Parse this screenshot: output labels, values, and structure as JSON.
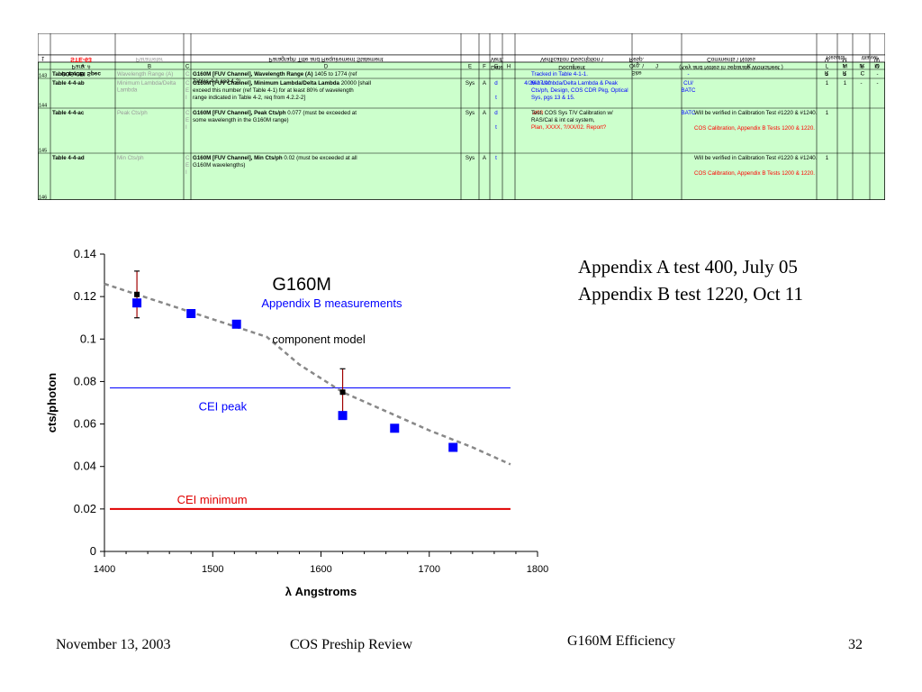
{
  "table": {
    "header": {
      "col1": [
        "COS CEI Spec",
        "Para. #",
        "STE-63"
      ],
      "parameter": "Parameter",
      "paragraph": "Paragraph Title and Requirement Statement",
      "date": [
        "Date",
        "Verif."
      ],
      "document": [
        "Document",
        "Verification Description \\"
      ],
      "org": [
        "Site",
        "Org. \\",
        "Resp."
      ],
      "comments": [
        "(Key and Notes in separate Worksheet )",
        "Comments \\ Notes"
      ],
      "results": "Results",
      "waiver": "Waiver",
      "rav": [
        "R",
        "A",
        "V"
      ],
      "rrm": [
        "R",
        "R",
        "M"
      ],
      "cmw": [
        "C",
        "M",
        "W"
      ],
      "index": "1"
    },
    "letters": [
      "A",
      "B",
      "C",
      "D",
      "E",
      "F",
      "G",
      "H",
      "I",
      "J",
      "K",
      "L",
      "M",
      "N",
      "O"
    ],
    "rows": [
      {
        "num": "143",
        "id": "Table 4-4-aa",
        "param": "Wavelength Range (A)",
        "c": "C",
        "d_bold": "G160M [FUV Channel], Wavelength Range (A)",
        "d_rest": " 1405 to 1774 (ref Tables 4-1 and 4-2)",
        "e": "",
        "f": "",
        "g": "",
        "h": "-",
        "i": "Tracked in Table 4-1-1.",
        "i_red": "",
        "j": "-",
        "k": "",
        "k_red": "",
        "l": "1",
        "m": "1",
        "n": "-",
        "o": "-"
      },
      {
        "num": "144",
        "id": "Table 4-4-ab",
        "param": "Minimum Lambda/Delta Lambda",
        "c": "C E I",
        "d_bold": "G160M [FUV Channel], Minimum Lambda/Delta Lambda",
        "d_rest": " 20000 [shall exceed this number (ref Table 4-1) for at least 80% of wavelength range indicated in Table 4-2, req from 4.2.2-2]",
        "e": "Sys",
        "f": "A",
        "g": "d t",
        "h": "4/26-27/00",
        "i": "Min Lambda/Delta Lambda & Peak Cts/ph, Design, COS CDR Pkg, Optical Sys, pgs 13 & 15.",
        "i_red": "",
        "j": "CU/ BATC",
        "k": "",
        "k_red": "",
        "l": "1",
        "m": "1",
        "n": "-",
        "o": "-"
      },
      {
        "num": "145",
        "id": "Table 4-4-ac",
        "param": "Peak Cts/ph",
        "c": "C E I",
        "d_bold": "G160M [FUV Channel], Peak Cts/ph",
        "d_rest": " 0.077 (must be exceeded at some wavelength in the G160M range)",
        "e": "Sys",
        "f": "A",
        "g": "d t",
        "h": "2/03",
        "i": "Test, COS Sys T/V Calibration w/ RAS/Cal & int cal system,",
        "i_red": "Plan, XXXX, ?/XX/02. Report?",
        "j": "BATC",
        "k": "Will be verified in Calibration Test #1220 & #1240.",
        "k_red": "COS Calibration, Appendix B Tests 1200 & 1220.",
        "l": "1",
        "m": "",
        "n": "",
        "o": ""
      },
      {
        "num": "146",
        "id": "Table 4-4-ad",
        "param": "Min Cts/ph",
        "c": "C E I",
        "d_bold": "G160M [FUV Channel], Min Cts/ph",
        "d_rest": " 0.02 (must be exceeded at all G160M wavelengths)",
        "e": "Sys",
        "f": "A",
        "g": "t",
        "h": "",
        "i": "",
        "i_red": "",
        "j": "",
        "k": "Will be verified in Calibration Test #1220 & #1240.",
        "k_red": "COS Calibration, Appendix B Tests 1200 & 1220.",
        "l": "1",
        "m": "",
        "n": "",
        "o": ""
      }
    ]
  },
  "chart_data": {
    "type": "scatter",
    "title": "G160M",
    "xlabel": "λ Angstroms",
    "ylabel": "cts/photon",
    "xlim": [
      1400,
      1800
    ],
    "ylim": [
      0,
      0.14
    ],
    "xticks": [
      1400,
      1500,
      1600,
      1700,
      1800
    ],
    "yticks": [
      0,
      0.02,
      0.04,
      0.06,
      0.08,
      0.1,
      0.12,
      0.14
    ],
    "grid": false,
    "series": [
      {
        "name": "Appendix B measurements",
        "color": "#0000ff",
        "marker": "square",
        "x": [
          1430,
          1480,
          1522,
          1620,
          1668,
          1722
        ],
        "y": [
          0.117,
          0.112,
          0.107,
          0.064,
          0.058,
          0.049
        ]
      },
      {
        "name": "component model",
        "color": "#888888",
        "style": "dashed",
        "x": [
          1400,
          1430,
          1460,
          1490,
          1520,
          1550,
          1580,
          1620,
          1660,
          1700,
          1740,
          1775
        ],
        "y": [
          0.126,
          0.121,
          0.116,
          0.111,
          0.106,
          0.101,
          0.088,
          0.075,
          0.066,
          0.057,
          0.049,
          0.041
        ]
      },
      {
        "name": "Appendix A test 400 points",
        "color": "#000000",
        "marker": "small-square",
        "x": [
          1430,
          1620
        ],
        "y": [
          0.121,
          0.075
        ],
        "err_low": [
          0.11,
          0.064
        ],
        "err_high": [
          0.132,
          0.086
        ]
      }
    ],
    "hlines": [
      {
        "name": "CEI peak",
        "y": 0.077,
        "color": "#0000ff"
      },
      {
        "name": "CEI minimum",
        "y": 0.02,
        "color": "#e00000"
      }
    ]
  },
  "notes": [
    "Appendix A test 400, July 05",
    "Appendix B test 1220, Oct 11"
  ],
  "footer": {
    "date": "November 13, 2003",
    "event": "COS Preship Review",
    "topic": "G160M Efficiency",
    "page": "32"
  },
  "colors": {
    "table_bg": "#ccffcc",
    "link_blue": "#0000ff",
    "red": "#ff0000",
    "grey": "#999999"
  }
}
